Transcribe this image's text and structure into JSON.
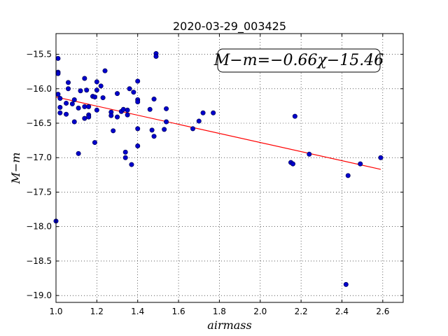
{
  "chart_data": {
    "type": "scatter",
    "title": "2020-03-29_003425",
    "xlabel": "airmass",
    "ylabel": "M−m",
    "xlim": [
      1.0,
      2.7
    ],
    "ylim": [
      -19.1,
      -15.2
    ],
    "xticks": [
      1.0,
      1.2,
      1.4,
      1.6,
      1.8,
      2.0,
      2.2,
      2.4,
      2.6
    ],
    "yticks": [
      -15.5,
      -16.0,
      -16.5,
      -17.0,
      -17.5,
      -18.0,
      -18.5,
      -19.0
    ],
    "xtick_labels": [
      "1.0",
      "1.2",
      "1.4",
      "1.6",
      "1.8",
      "2.0",
      "2.2",
      "2.4",
      "2.6"
    ],
    "ytick_labels": [
      "−15.5",
      "−16.0",
      "−16.5",
      "−17.0",
      "−17.5",
      "−18.0",
      "−18.5",
      "−19.0"
    ],
    "grid": true,
    "legend_text": "M−m=−0.66χ−15.46",
    "legend_position": "top-right",
    "point_color": "#0000cc",
    "fit_color": "#ff0000",
    "fit": {
      "slope": -0.66,
      "intercept": -15.46,
      "x_range": [
        1.0,
        2.59
      ]
    },
    "points": [
      [
        1.01,
        -15.56
      ],
      [
        1.01,
        -15.76
      ],
      [
        1.01,
        -15.78
      ],
      [
        1.0,
        -17.92
      ],
      [
        1.01,
        -16.08
      ],
      [
        1.02,
        -16.14
      ],
      [
        1.02,
        -16.27
      ],
      [
        1.02,
        -16.35
      ],
      [
        1.06,
        -15.91
      ],
      [
        1.06,
        -16.0
      ],
      [
        1.05,
        -16.21
      ],
      [
        1.05,
        -16.37
      ],
      [
        1.08,
        -16.22
      ],
      [
        1.09,
        -16.16
      ],
      [
        1.09,
        -16.48
      ],
      [
        1.11,
        -16.94
      ],
      [
        1.11,
        -16.28
      ],
      [
        1.12,
        -16.03
      ],
      [
        1.14,
        -15.85
      ],
      [
        1.14,
        -16.26
      ],
      [
        1.14,
        -16.43
      ],
      [
        1.15,
        -16.02
      ],
      [
        1.16,
        -16.26
      ],
      [
        1.16,
        -16.38
      ],
      [
        1.16,
        -16.41
      ],
      [
        1.18,
        -16.11
      ],
      [
        1.19,
        -16.12
      ],
      [
        1.19,
        -16.78
      ],
      [
        1.2,
        -15.9
      ],
      [
        1.2,
        -16.02
      ],
      [
        1.2,
        -16.31
      ],
      [
        1.22,
        -15.96
      ],
      [
        1.23,
        -16.13
      ],
      [
        1.24,
        -15.74
      ],
      [
        1.27,
        -16.34
      ],
      [
        1.27,
        -16.39
      ],
      [
        1.28,
        -16.61
      ],
      [
        1.3,
        -16.07
      ],
      [
        1.3,
        -16.41
      ],
      [
        1.32,
        -16.33
      ],
      [
        1.33,
        -16.3
      ],
      [
        1.34,
        -16.92
      ],
      [
        1.34,
        -17.0
      ],
      [
        1.35,
        -16.31
      ],
      [
        1.35,
        -16.38
      ],
      [
        1.36,
        -16.0
      ],
      [
        1.37,
        -17.1
      ],
      [
        1.38,
        -16.05
      ],
      [
        1.4,
        -15.89
      ],
      [
        1.4,
        -16.16
      ],
      [
        1.4,
        -16.19
      ],
      [
        1.4,
        -16.58
      ],
      [
        1.4,
        -16.83
      ],
      [
        1.46,
        -16.3
      ],
      [
        1.47,
        -16.6
      ],
      [
        1.48,
        -16.15
      ],
      [
        1.48,
        -16.69
      ],
      [
        1.49,
        -15.49
      ],
      [
        1.49,
        -15.53
      ],
      [
        1.53,
        -16.59
      ],
      [
        1.54,
        -16.48
      ],
      [
        1.54,
        -16.29
      ],
      [
        1.67,
        -16.58
      ],
      [
        1.7,
        -16.47
      ],
      [
        1.72,
        -16.35
      ],
      [
        1.77,
        -16.35
      ],
      [
        2.15,
        -17.07
      ],
      [
        2.16,
        -17.09
      ],
      [
        2.17,
        -16.4
      ],
      [
        2.24,
        -16.95
      ],
      [
        2.42,
        -18.84
      ],
      [
        2.43,
        -17.26
      ],
      [
        2.49,
        -17.09
      ],
      [
        2.59,
        -17.0
      ]
    ]
  }
}
